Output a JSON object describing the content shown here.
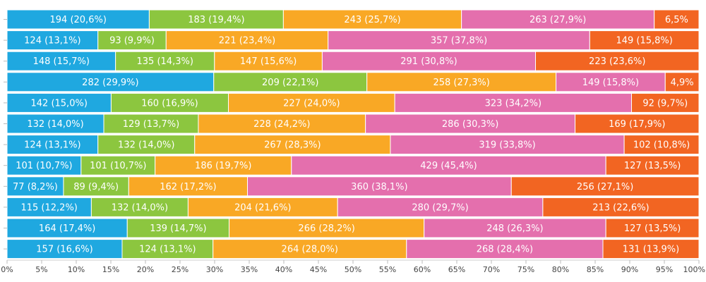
{
  "chart_data": {
    "type": "bar",
    "orientation": "horizontal",
    "stacked": "percent",
    "xlim": [
      0,
      100
    ],
    "x_ticks": [
      "0%",
      "5%",
      "10%",
      "15%",
      "20%",
      "25%",
      "30%",
      "35%",
      "40%",
      "45%",
      "50%",
      "55%",
      "60%",
      "65%",
      "70%",
      "75%",
      "80%",
      "85%",
      "90%",
      "95%",
      "100%"
    ],
    "grid": false,
    "legend": "none",
    "series": [
      {
        "color": "#1fa8e0"
      },
      {
        "color": "#8cc63f"
      },
      {
        "color": "#f9a825"
      },
      {
        "color": "#e46fad"
      },
      {
        "color": "#f26522"
      }
    ],
    "rows": [
      {
        "values": [
          194,
          183,
          243,
          263,
          61
        ],
        "labels": [
          "194 (20,6%)",
          "183 (19,4%)",
          "243 (25,7%)",
          "263 (27,9%)",
          "6,5%"
        ]
      },
      {
        "values": [
          124,
          93,
          221,
          357,
          149
        ],
        "labels": [
          "124 (13,1%)",
          "93 (9,9%)",
          "221 (23,4%)",
          "357 (37,8%)",
          "149 (15,8%)"
        ]
      },
      {
        "values": [
          148,
          135,
          147,
          291,
          223
        ],
        "labels": [
          "148 (15,7%)",
          "135 (14,3%)",
          "147 (15,6%)",
          "291 (30,8%)",
          "223 (23,6%)"
        ]
      },
      {
        "values": [
          282,
          209,
          258,
          149,
          46
        ],
        "labels": [
          "282 (29,9%)",
          "209 (22,1%)",
          "258 (27,3%)",
          "149 (15,8%)",
          "4,9%"
        ]
      },
      {
        "values": [
          142,
          160,
          227,
          323,
          92
        ],
        "labels": [
          "142 (15,0%)",
          "160 (16,9%)",
          "227 (24,0%)",
          "323 (34,2%)",
          "92 (9,7%)"
        ]
      },
      {
        "values": [
          132,
          129,
          228,
          286,
          169
        ],
        "labels": [
          "132 (14,0%)",
          "129 (13,7%)",
          "228 (24,2%)",
          "286 (30,3%)",
          "169 (17,9%)"
        ]
      },
      {
        "values": [
          124,
          132,
          267,
          319,
          102
        ],
        "labels": [
          "124 (13,1%)",
          "132 (14,0%)",
          "267 (28,3%)",
          "319 (33,8%)",
          "102 (10,8%)"
        ]
      },
      {
        "values": [
          101,
          101,
          186,
          429,
          127
        ],
        "labels": [
          "101 (10,7%)",
          "101 (10,7%)",
          "186 (19,7%)",
          "429 (45,4%)",
          "127 (13,5%)"
        ]
      },
      {
        "values": [
          77,
          89,
          162,
          360,
          256
        ],
        "labels": [
          "77 (8,2%)",
          "89 (9,4%)",
          "162 (17,2%)",
          "360 (38,1%)",
          "256 (27,1%)"
        ]
      },
      {
        "values": [
          115,
          132,
          204,
          280,
          213
        ],
        "labels": [
          "115 (12,2%)",
          "132 (14,0%)",
          "204 (21,6%)",
          "280 (29,7%)",
          "213 (22,6%)"
        ]
      },
      {
        "values": [
          164,
          139,
          266,
          248,
          127
        ],
        "labels": [
          "164 (17,4%)",
          "139 (14,7%)",
          "266 (28,2%)",
          "248 (26,3%)",
          "127 (13,5%)"
        ]
      },
      {
        "values": [
          157,
          124,
          264,
          268,
          131
        ],
        "labels": [
          "157 (16,6%)",
          "124 (13,1%)",
          "264 (28,0%)",
          "268 (28,4%)",
          "131 (13,9%)"
        ]
      }
    ]
  }
}
